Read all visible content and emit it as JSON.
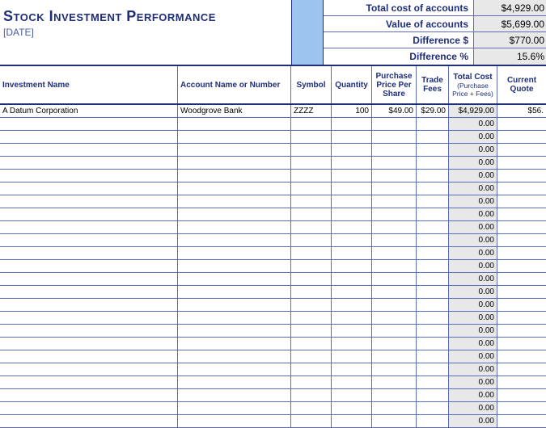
{
  "title": "Stock Investment Performance",
  "date_label": "[DATE]",
  "summary": {
    "total_cost_label": "Total cost of accounts",
    "total_cost_value": "$4,929.00",
    "value_label": "Value of accounts",
    "value_value": "$5,699.00",
    "diff_dollar_label": "Difference $",
    "diff_dollar_value": "$770.00",
    "diff_pct_label": "Difference %",
    "diff_pct_value": "15.6%"
  },
  "columns": {
    "investment_name": "Investment Name",
    "account": "Account Name or Number",
    "symbol": "Symbol",
    "quantity": "Quantity",
    "price": "Purchase Price Per Share",
    "fees": "Trade Fees",
    "total_cost": "Total Cost",
    "total_cost_sub": "(Purchase Price + Fees)",
    "current": "Current Quote"
  },
  "data_row": {
    "investment_name": "A Datum Corporation",
    "account": "Woodgrove Bank",
    "symbol": "ZZZZ",
    "quantity": "100",
    "price": "$49.00",
    "fees": "$29.00",
    "total_cost": "$4,929.00",
    "current": "$56."
  },
  "empty_total": "0.00",
  "empty_row_count": 24,
  "colors": {
    "primary": "#1f2e7a",
    "accent_bg": "#9cc4ed",
    "shaded_bg": "#e8e8e8",
    "border": "#5b6db5"
  }
}
